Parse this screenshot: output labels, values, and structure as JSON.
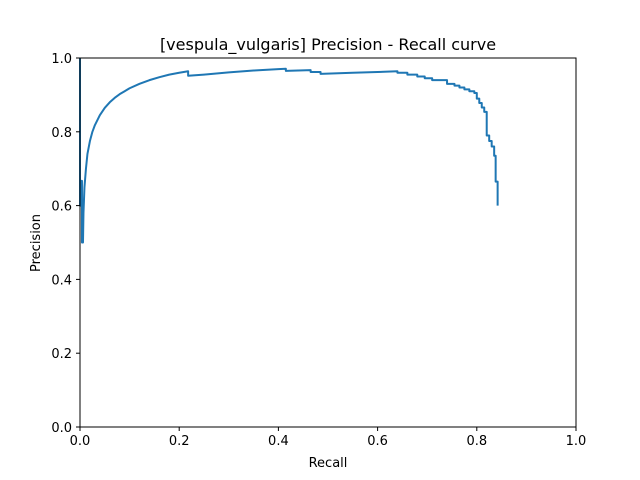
{
  "chart_data": {
    "type": "line",
    "title": "[vespula_vulgaris] Precision - Recall curve",
    "xlabel": "Recall",
    "ylabel": "Precision",
    "xlim": [
      0,
      1
    ],
    "ylim": [
      0,
      1
    ],
    "grid": false,
    "x_ticks": [
      "0.0",
      "0.2",
      "0.4",
      "0.6",
      "0.8",
      "1.0"
    ],
    "y_ticks": [
      "0.0",
      "0.2",
      "0.4",
      "0.6",
      "0.8",
      "1.0"
    ],
    "line_color": "#1f77b4",
    "series": [
      {
        "points": [
          [
            0.0,
            1.0
          ],
          [
            0.0,
            0.6
          ],
          [
            0.002,
            0.6
          ],
          [
            0.002,
            0.667
          ],
          [
            0.004,
            0.667
          ],
          [
            0.004,
            0.5
          ],
          [
            0.006,
            0.5
          ],
          [
            0.007,
            0.58
          ],
          [
            0.009,
            0.65
          ],
          [
            0.012,
            0.7
          ],
          [
            0.015,
            0.74
          ],
          [
            0.02,
            0.775
          ],
          [
            0.025,
            0.8
          ],
          [
            0.03,
            0.818
          ],
          [
            0.04,
            0.845
          ],
          [
            0.05,
            0.865
          ],
          [
            0.06,
            0.88
          ],
          [
            0.07,
            0.892
          ],
          [
            0.08,
            0.902
          ],
          [
            0.09,
            0.91
          ],
          [
            0.1,
            0.918
          ],
          [
            0.12,
            0.93
          ],
          [
            0.14,
            0.94
          ],
          [
            0.16,
            0.948
          ],
          [
            0.18,
            0.955
          ],
          [
            0.2,
            0.96
          ],
          [
            0.218,
            0.964
          ],
          [
            0.218,
            0.952
          ],
          [
            0.25,
            0.955
          ],
          [
            0.3,
            0.961
          ],
          [
            0.35,
            0.966
          ],
          [
            0.4,
            0.97
          ],
          [
            0.415,
            0.971
          ],
          [
            0.415,
            0.965
          ],
          [
            0.465,
            0.967
          ],
          [
            0.465,
            0.962
          ],
          [
            0.485,
            0.962
          ],
          [
            0.485,
            0.957
          ],
          [
            0.55,
            0.96
          ],
          [
            0.6,
            0.962
          ],
          [
            0.64,
            0.964
          ],
          [
            0.64,
            0.96
          ],
          [
            0.66,
            0.96
          ],
          [
            0.66,
            0.955
          ],
          [
            0.68,
            0.955
          ],
          [
            0.68,
            0.95
          ],
          [
            0.695,
            0.95
          ],
          [
            0.695,
            0.945
          ],
          [
            0.71,
            0.945
          ],
          [
            0.71,
            0.94
          ],
          [
            0.74,
            0.94
          ],
          [
            0.74,
            0.93
          ],
          [
            0.755,
            0.93
          ],
          [
            0.755,
            0.925
          ],
          [
            0.765,
            0.925
          ],
          [
            0.765,
            0.92
          ],
          [
            0.775,
            0.92
          ],
          [
            0.775,
            0.915
          ],
          [
            0.785,
            0.915
          ],
          [
            0.785,
            0.91
          ],
          [
            0.795,
            0.91
          ],
          [
            0.795,
            0.905
          ],
          [
            0.8,
            0.905
          ],
          [
            0.8,
            0.89
          ],
          [
            0.805,
            0.89
          ],
          [
            0.805,
            0.878
          ],
          [
            0.81,
            0.878
          ],
          [
            0.81,
            0.866
          ],
          [
            0.815,
            0.866
          ],
          [
            0.815,
            0.854
          ],
          [
            0.82,
            0.854
          ],
          [
            0.82,
            0.79
          ],
          [
            0.825,
            0.79
          ],
          [
            0.825,
            0.775
          ],
          [
            0.83,
            0.775
          ],
          [
            0.83,
            0.76
          ],
          [
            0.835,
            0.76
          ],
          [
            0.835,
            0.735
          ],
          [
            0.838,
            0.735
          ],
          [
            0.838,
            0.665
          ],
          [
            0.842,
            0.665
          ],
          [
            0.842,
            0.6
          ]
        ]
      }
    ]
  }
}
